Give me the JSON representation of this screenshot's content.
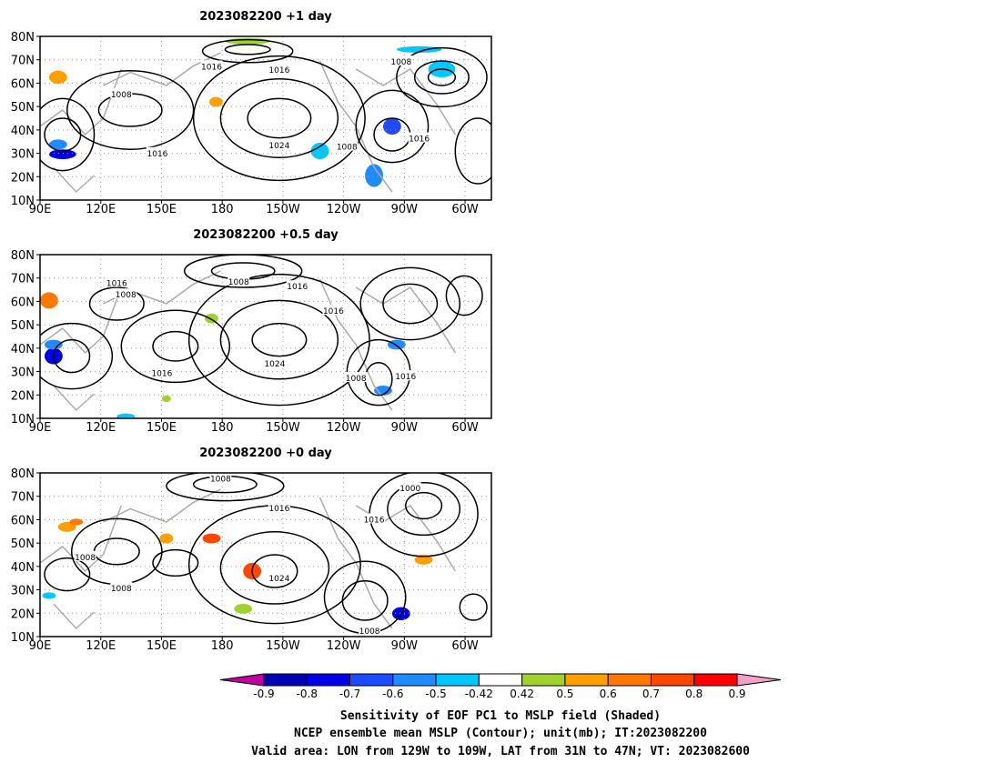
{
  "chart_data": {
    "type": "heatmap",
    "panels": [
      {
        "title": "2023082200  +1 day"
      },
      {
        "title": "2023082200  +0.5 day"
      },
      {
        "title": "2023082200  +0 day"
      }
    ],
    "x_ticks": [
      "90E",
      "120E",
      "150E",
      "180",
      "150W",
      "120W",
      "90W",
      "60W"
    ],
    "x_range": [
      "90E",
      "47W"
    ],
    "y_ticks": [
      "80N",
      "70N",
      "60N",
      "50N",
      "40N",
      "30N",
      "20N",
      "10N"
    ],
    "y_range": [
      10,
      80
    ],
    "grid": true,
    "contour_labels": [
      [
        "1016",
        "1016",
        "1008",
        "1008",
        "1016",
        "1024",
        "1008",
        "1016"
      ],
      [
        "1016",
        "1008",
        "1008",
        "1016",
        "1016",
        "1024",
        "1016",
        "1008",
        "1016"
      ],
      [
        "1008",
        "1000",
        "1016",
        "1016",
        "1008",
        "1024",
        "1008",
        "1008"
      ]
    ],
    "colorbar": {
      "tick_labels": [
        "-0.9",
        "-0.8",
        "-0.7",
        "-0.6",
        "-0.5",
        "-0.42",
        "0.42",
        "0.5",
        "0.6",
        "0.7",
        "0.8",
        "0.9"
      ],
      "colors": [
        "#c000a0",
        "#0000b4",
        "#0000e6",
        "#1e4bff",
        "#1e8cff",
        "#00c8ff",
        "#ffffff",
        "#a0d22d",
        "#ffa000",
        "#ff7800",
        "#ff4600",
        "#ff0000",
        "#f5a0c8"
      ]
    },
    "captions": [
      "Sensitivity of EOF PC1 to MSLP field (Shaded)",
      "NCEP ensemble mean MSLP (Contour); unit(mb); IT:2023082200",
      "Valid area: LON from 129W to 109W, LAT from 31N to 47N; VT: 2023082600"
    ]
  }
}
